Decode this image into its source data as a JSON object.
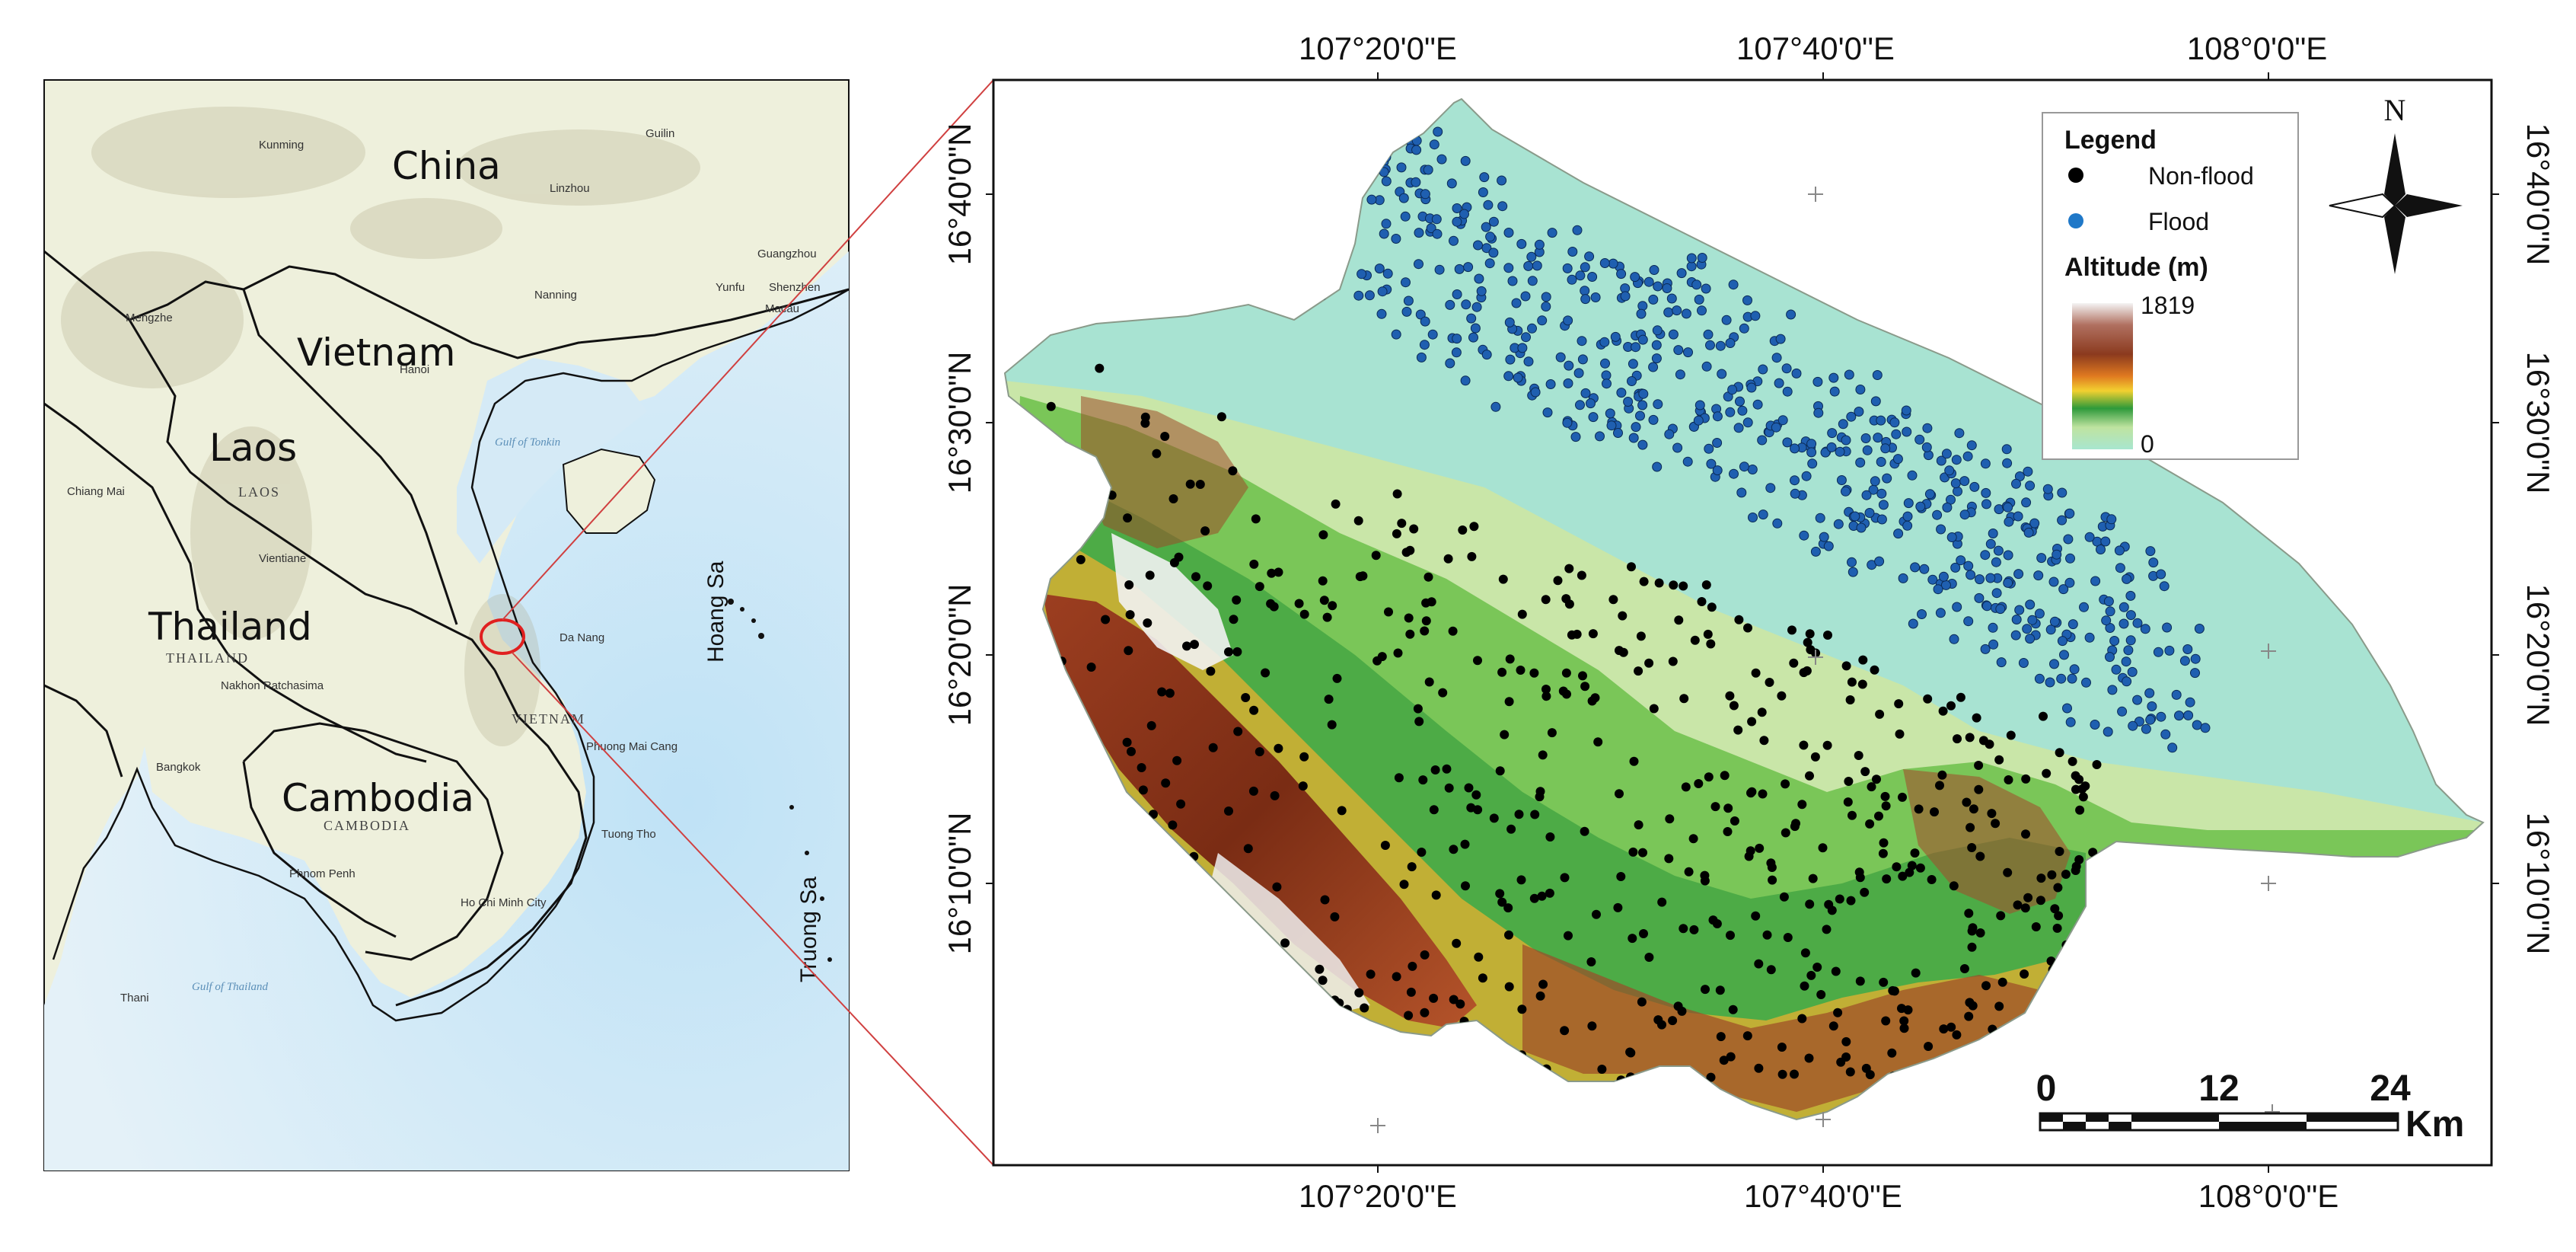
{
  "overview": {
    "countries": [
      "China",
      "Vietnam",
      "Laos",
      "Thailand",
      "Cambodia"
    ],
    "country_sublabels": [
      "LAOS",
      "THAILAND",
      "CAMBODIA",
      "VIETNAM"
    ],
    "cities": [
      "Kunming",
      "Guilin",
      "Linzhou",
      "Nanning",
      "Guangzhou",
      "Yunfu",
      "Shenzhen",
      "Macau",
      "Mengzhe",
      "Hanoi",
      "Chiang Mai",
      "Vientiane",
      "Nakhon Ratchasima",
      "Bangkok",
      "Phnom Penh",
      "Ho Chi Minh City",
      "Da Nang",
      "Phuong Mai Cang",
      "Tuong Tho",
      "Thani"
    ],
    "water_labels": [
      "Gulf of Tonkin",
      "Gulf of Thailand"
    ],
    "islands": [
      "Hoang Sa",
      "Truong Sa"
    ],
    "colors": {
      "land": "#eef0dc",
      "sea": "#d8ecf8",
      "border": "#111111",
      "study_area": "#e02020",
      "connector": "#d04040"
    }
  },
  "study_map": {
    "longitude_ticks": [
      "107°20'0\"E",
      "107°40'0\"E",
      "108°0'0\"E"
    ],
    "latitude_ticks": [
      "16°40'0\"N",
      "16°30'0\"N",
      "16°20'0\"N",
      "16°10'0\"N"
    ],
    "legend": {
      "title": "Legend",
      "items": [
        {
          "label": "Non-flood",
          "color": "#000000"
        },
        {
          "label": "Flood",
          "color": "#1f78c8"
        }
      ],
      "altitude_title": "Altitude (m)",
      "altitude_max": "1819",
      "altitude_min": "0",
      "ramp": [
        "#f0f0f0",
        "#8b3a1e",
        "#a0522d",
        "#d97020",
        "#f0c020",
        "#6ab04c",
        "#2e9a3a",
        "#cfe8b0",
        "#a8e6cf"
      ]
    },
    "north_label": "N",
    "scale_bar": {
      "ticks": [
        "0",
        "12",
        "24"
      ],
      "unit": "Km"
    },
    "colors": {
      "lowland": "#a8e3d2",
      "flood_point": "#1f5fb0",
      "nonflood_point": "#000000"
    }
  }
}
